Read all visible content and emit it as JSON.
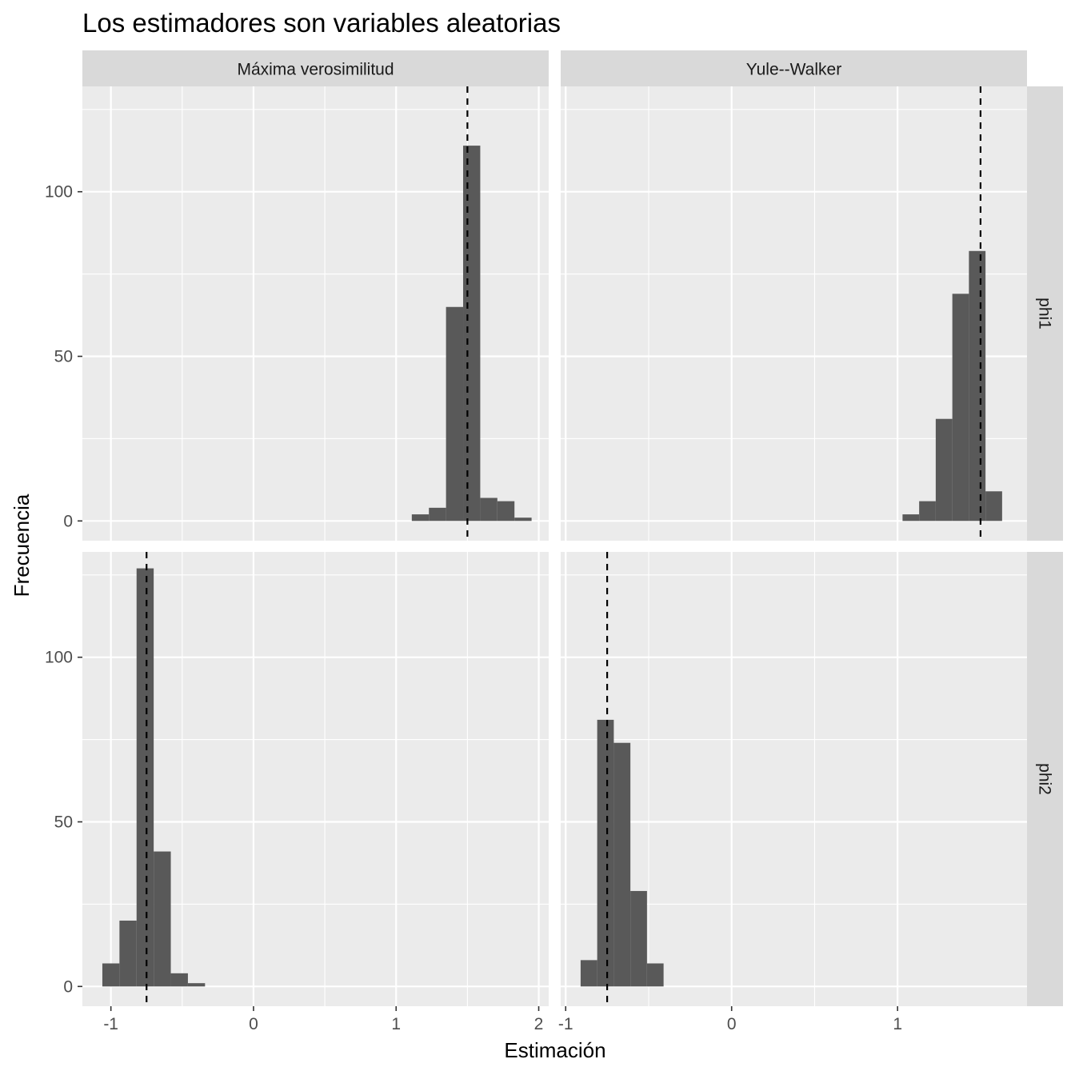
{
  "chart_data": {
    "type": "histogram",
    "title": "Los estimadores son variables aleatorias",
    "xlabel": "Estimación",
    "ylabel": "Frecuencia",
    "grid": true,
    "legend": "none",
    "col_facets": [
      "Máxima verosimilitud",
      "Yule--Walker"
    ],
    "row_facets": [
      "phi1",
      "phi2"
    ],
    "ylim": [
      -6,
      132
    ],
    "y_ticks": [
      0,
      50,
      100
    ],
    "y_tick_labels": [
      "0",
      "50",
      "100"
    ],
    "colors": {
      "bar": "#595959",
      "panel_bg": "#ebebeb",
      "grid": "#ffffff",
      "strip_bg": "#d9d9d9",
      "reference_line": "#000000"
    },
    "columns": [
      {
        "xlim": [
          -1.2,
          2.07
        ],
        "x_ticks": [
          -1,
          0,
          1,
          2
        ],
        "x_tick_labels": [
          "-1",
          "0",
          "1",
          "2"
        ]
      },
      {
        "xlim": [
          -1.03,
          1.78
        ],
        "x_ticks": [
          -1,
          0,
          1
        ],
        "x_tick_labels": [
          "-1",
          "0",
          "1"
        ]
      }
    ],
    "panels": [
      {
        "column": "Máxima verosimilitud",
        "row": "phi1",
        "reference_value": 1.5,
        "bins": [
          {
            "start": 1.11,
            "end": 1.23,
            "count": 2
          },
          {
            "start": 1.23,
            "end": 1.35,
            "count": 4
          },
          {
            "start": 1.35,
            "end": 1.47,
            "count": 65
          },
          {
            "start": 1.47,
            "end": 1.59,
            "count": 114
          },
          {
            "start": 1.59,
            "end": 1.71,
            "count": 7
          },
          {
            "start": 1.71,
            "end": 1.83,
            "count": 6
          },
          {
            "start": 1.83,
            "end": 1.95,
            "count": 1
          }
        ]
      },
      {
        "column": "Yule--Walker",
        "row": "phi1",
        "reference_value": 1.5,
        "bins": [
          {
            "start": 1.03,
            "end": 1.13,
            "count": 2
          },
          {
            "start": 1.13,
            "end": 1.23,
            "count": 6
          },
          {
            "start": 1.23,
            "end": 1.33,
            "count": 31
          },
          {
            "start": 1.33,
            "end": 1.43,
            "count": 69
          },
          {
            "start": 1.43,
            "end": 1.53,
            "count": 82
          },
          {
            "start": 1.53,
            "end": 1.63,
            "count": 9
          }
        ]
      },
      {
        "column": "Máxima verosimilitud",
        "row": "phi2",
        "reference_value": -0.75,
        "bins": [
          {
            "start": -1.06,
            "end": -0.94,
            "count": 7
          },
          {
            "start": -0.94,
            "end": -0.82,
            "count": 20
          },
          {
            "start": -0.82,
            "end": -0.7,
            "count": 127
          },
          {
            "start": -0.7,
            "end": -0.58,
            "count": 41
          },
          {
            "start": -0.58,
            "end": -0.46,
            "count": 4
          },
          {
            "start": -0.46,
            "end": -0.34,
            "count": 1
          }
        ]
      },
      {
        "column": "Yule--Walker",
        "row": "phi2",
        "reference_value": -0.75,
        "bins": [
          {
            "start": -0.91,
            "end": -0.81,
            "count": 8
          },
          {
            "start": -0.81,
            "end": -0.71,
            "count": 81
          },
          {
            "start": -0.71,
            "end": -0.61,
            "count": 74
          },
          {
            "start": -0.61,
            "end": -0.51,
            "count": 29
          },
          {
            "start": -0.51,
            "end": -0.41,
            "count": 7
          }
        ]
      }
    ]
  }
}
